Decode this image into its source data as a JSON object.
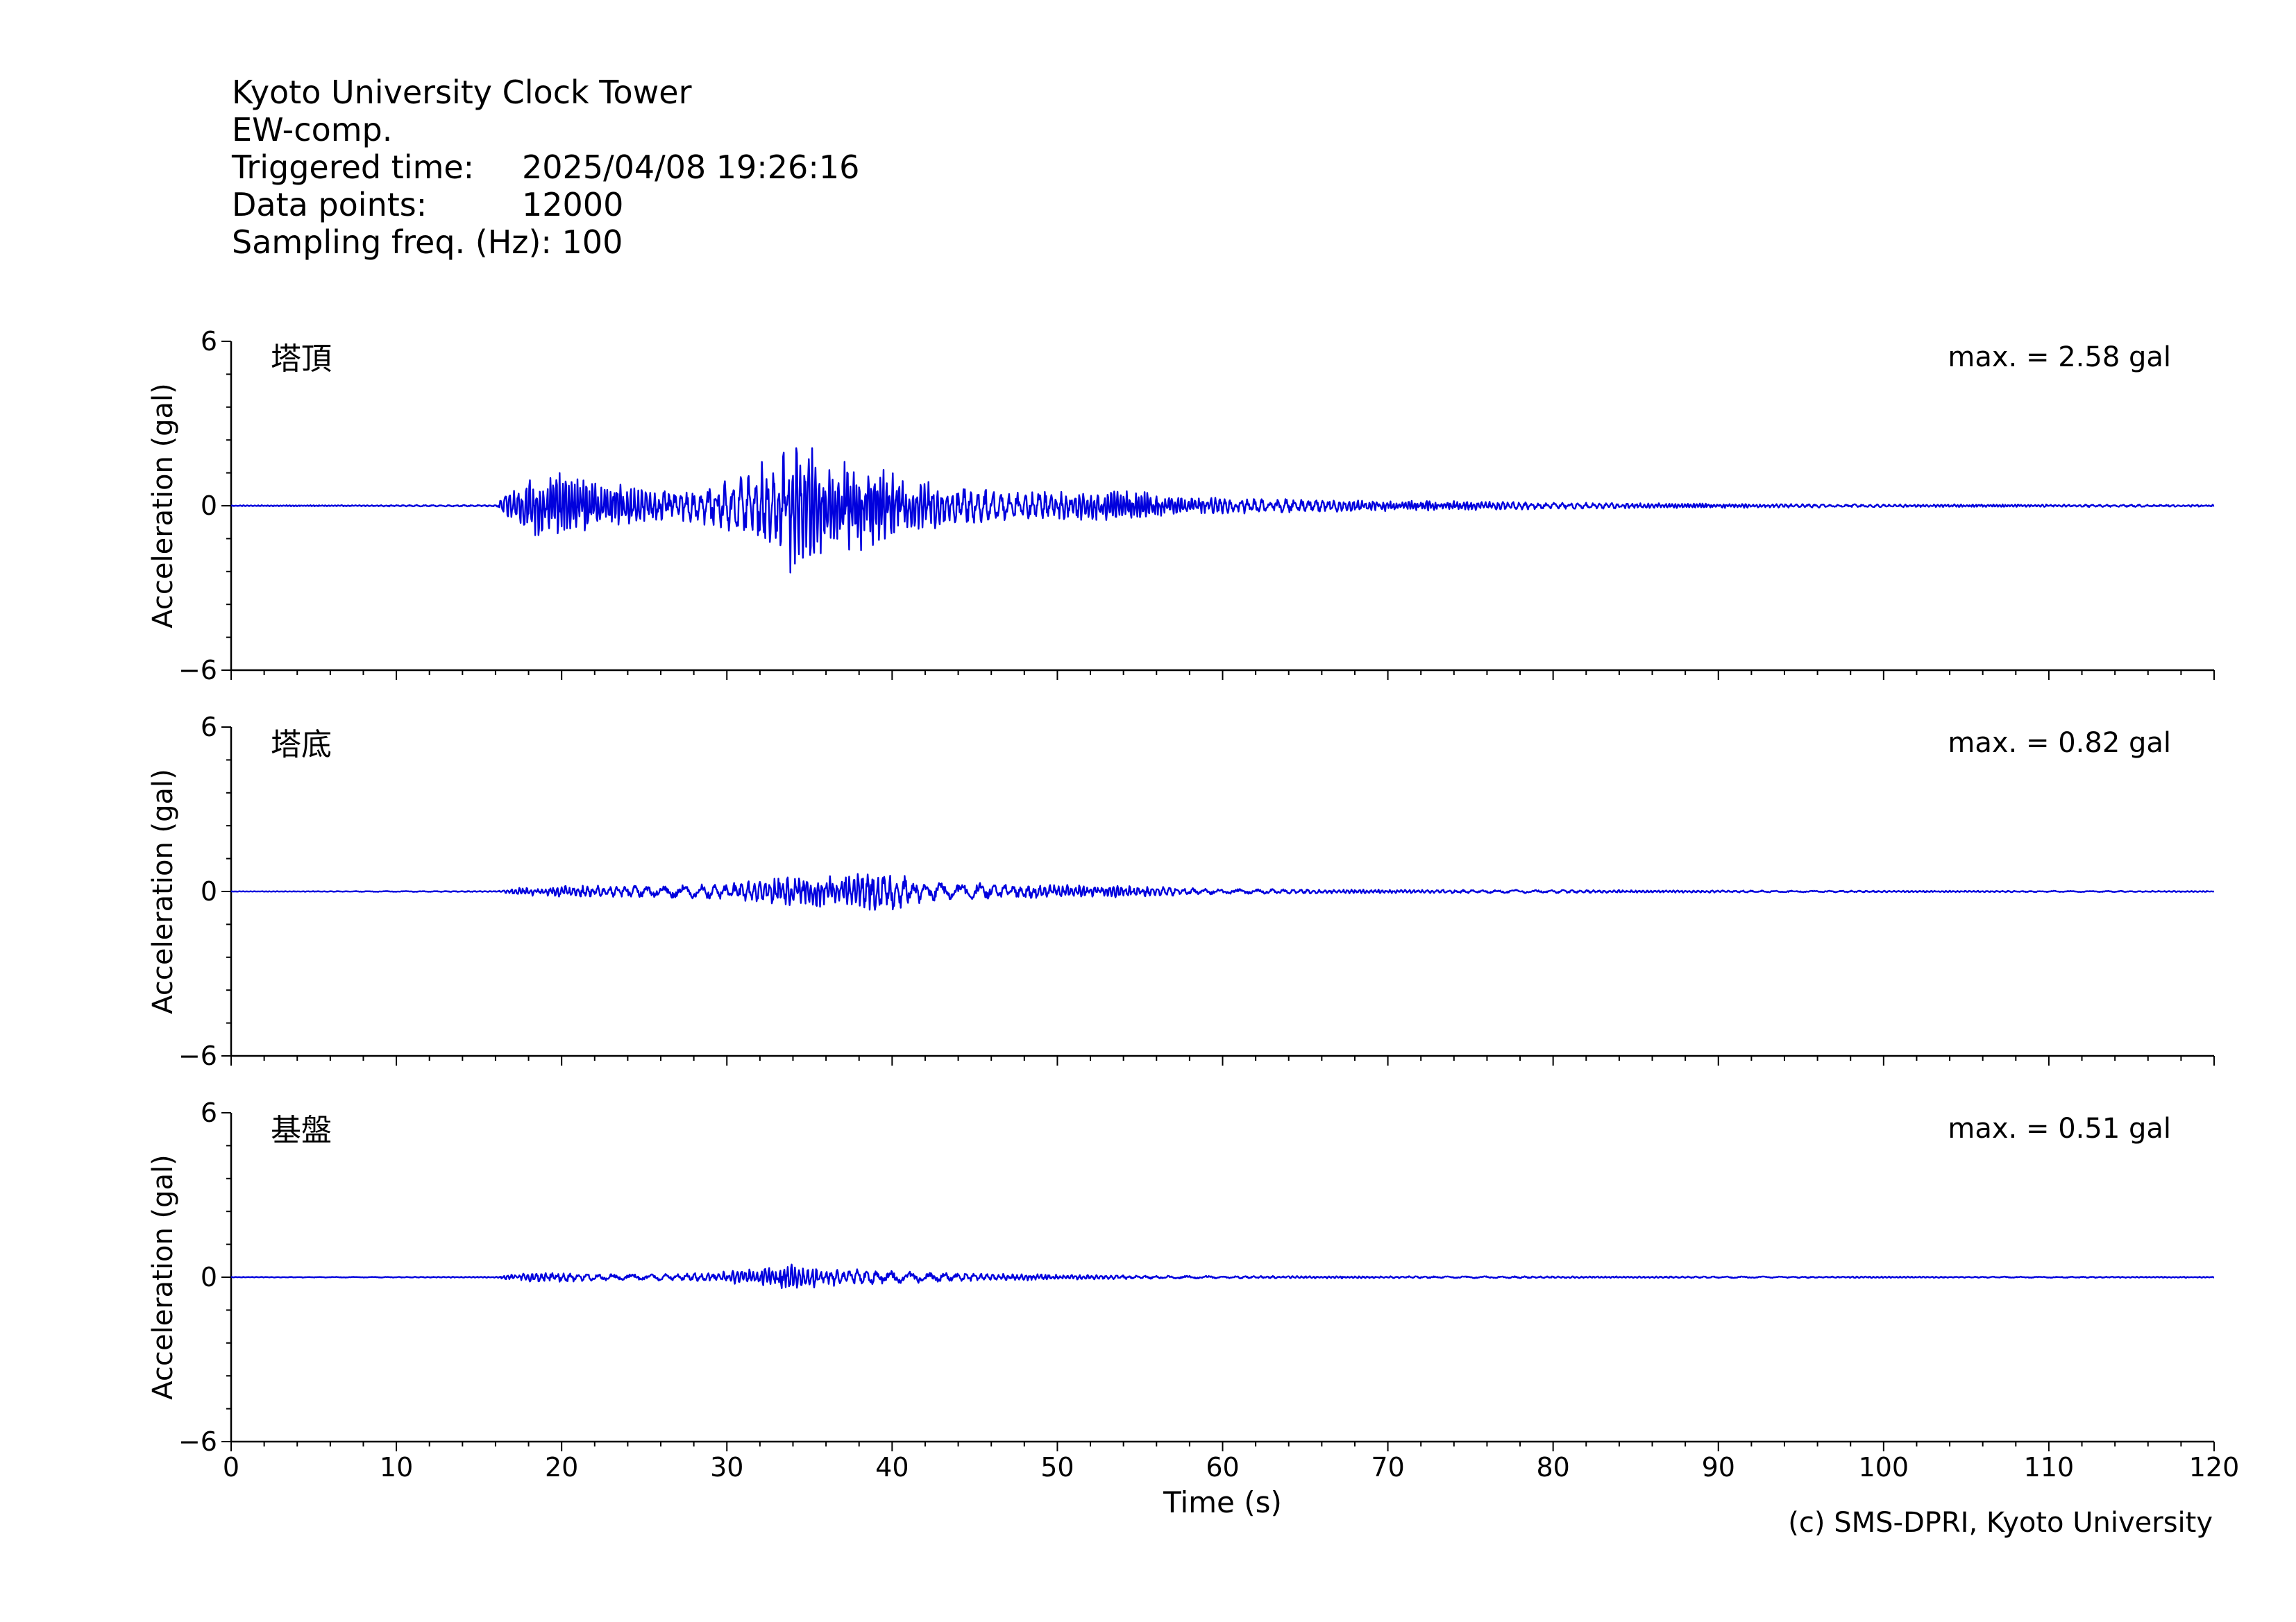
{
  "header": {
    "station": "Kyoto University Clock Tower",
    "component": "EW-comp.",
    "triggered_label": "Triggered time:",
    "triggered_value": "2025/04/08 19:26:16",
    "points_label": "Data points:",
    "points_value": "12000",
    "freq_label": "Sampling freq. (Hz):",
    "freq_value": "100"
  },
  "copyright": "(c) SMS-DPRI, Kyoto University",
  "colors": {
    "trace": "#0000dd",
    "axis": "#000000"
  },
  "chart_data": {
    "type": "line",
    "xlabel": "Time (s)",
    "ylabel": "Acceleration (gal)",
    "xlim": [
      0,
      120
    ],
    "ylim": [
      -6,
      6
    ],
    "x_ticks": [
      0,
      10,
      20,
      30,
      40,
      50,
      60,
      70,
      80,
      90,
      100,
      110,
      120
    ],
    "x_tick_labels": [
      "0",
      "10",
      "20",
      "30",
      "40",
      "50",
      "60",
      "70",
      "80",
      "90",
      "100",
      "110",
      "120"
    ],
    "y_ticks": [
      -6,
      0,
      6
    ],
    "y_tick_labels": [
      "−6",
      "0",
      "6"
    ],
    "grid": false,
    "panels": [
      {
        "name": "塔頂",
        "max_label": "max. = 2.58 gal",
        "max_abs": 2.58,
        "envelope": [
          [
            0,
            0.02
          ],
          [
            16,
            0.03
          ],
          [
            16.5,
            0.4
          ],
          [
            18.5,
            1.3
          ],
          [
            20,
            1.2
          ],
          [
            22,
            0.9
          ],
          [
            25,
            0.7
          ],
          [
            28,
            0.6
          ],
          [
            31,
            1.3
          ],
          [
            33,
            1.9
          ],
          [
            34,
            2.58
          ],
          [
            36,
            1.8
          ],
          [
            38,
            1.7
          ],
          [
            40,
            1.2
          ],
          [
            43,
            0.8
          ],
          [
            47,
            0.6
          ],
          [
            51,
            0.55
          ],
          [
            55,
            0.55
          ],
          [
            57,
            0.35
          ],
          [
            65,
            0.25
          ],
          [
            72,
            0.2
          ],
          [
            80,
            0.13
          ],
          [
            90,
            0.08
          ],
          [
            100,
            0.06
          ],
          [
            110,
            0.05
          ],
          [
            120,
            0.04
          ]
        ]
      },
      {
        "name": "塔底",
        "max_label": "max. = 0.82 gal",
        "max_abs": 0.82,
        "envelope": [
          [
            0,
            0.01
          ],
          [
            16,
            0.02
          ],
          [
            17,
            0.12
          ],
          [
            20,
            0.22
          ],
          [
            25,
            0.22
          ],
          [
            30,
            0.3
          ],
          [
            33,
            0.55
          ],
          [
            36,
            0.6
          ],
          [
            39,
            0.82
          ],
          [
            42,
            0.4
          ],
          [
            46,
            0.3
          ],
          [
            50,
            0.25
          ],
          [
            55,
            0.2
          ],
          [
            60,
            0.1
          ],
          [
            70,
            0.07
          ],
          [
            80,
            0.06
          ],
          [
            90,
            0.04
          ],
          [
            100,
            0.03
          ],
          [
            120,
            0.02
          ]
        ]
      },
      {
        "name": "基盤",
        "max_label": "max. = 0.51 gal",
        "max_abs": 0.51,
        "envelope": [
          [
            0,
            0.01
          ],
          [
            16,
            0.02
          ],
          [
            17,
            0.12
          ],
          [
            19,
            0.2
          ],
          [
            22,
            0.15
          ],
          [
            27,
            0.12
          ],
          [
            31,
            0.28
          ],
          [
            34,
            0.51
          ],
          [
            36,
            0.35
          ],
          [
            40,
            0.25
          ],
          [
            45,
            0.15
          ],
          [
            52,
            0.08
          ],
          [
            60,
            0.05
          ],
          [
            70,
            0.04
          ],
          [
            90,
            0.03
          ],
          [
            120,
            0.02
          ]
        ]
      }
    ]
  }
}
